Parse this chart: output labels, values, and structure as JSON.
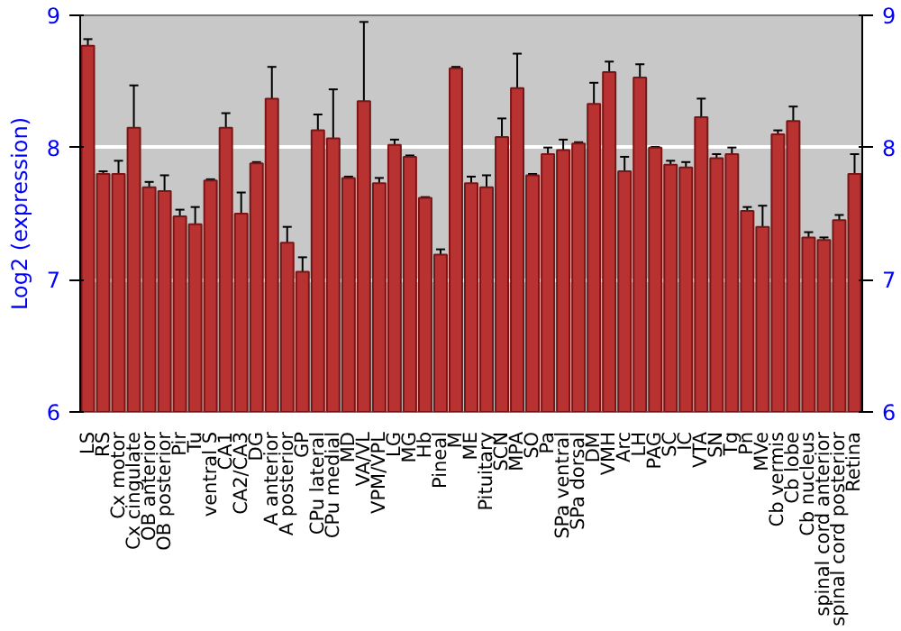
{
  "chart_data": {
    "type": "bar",
    "ylabel": "Log2 (expression)",
    "categories": [
      "LS",
      "RS",
      "Cx motor",
      "Cx cingulate",
      "OB anterior",
      "OB posterior",
      "Pir",
      "Tu",
      "ventral S",
      "CA1",
      "CA2/CA3",
      "DG",
      "A anterior",
      "A posterior",
      "GP",
      "CPu lateral",
      "CPu medial",
      "MD",
      "VA/VL",
      "VPM/VPL",
      "LG",
      "MG",
      "Hb",
      "Pineal",
      "M",
      "ME",
      "Pituitary",
      "SCN",
      "MPA",
      "SO",
      "Pa",
      "SPa ventral",
      "SPa dorsal",
      "DM",
      "VMH",
      "Arc",
      "LH",
      "PAG",
      "SC",
      "IC",
      "VTA",
      "SN",
      "Tg",
      "Pn",
      "MVe",
      "Cb vermis",
      "Cb lobe",
      "Cb nucleus",
      "spinal cord anterior",
      "spinal cord posterior",
      "Retina"
    ],
    "values": [
      8.77,
      7.8,
      7.8,
      8.15,
      7.7,
      7.67,
      7.48,
      7.42,
      7.75,
      8.15,
      7.5,
      7.88,
      8.37,
      7.28,
      7.06,
      8.13,
      8.07,
      7.77,
      8.35,
      7.73,
      8.02,
      7.93,
      7.62,
      7.19,
      8.6,
      7.73,
      7.7,
      8.08,
      8.45,
      7.79,
      7.95,
      7.98,
      8.03,
      8.33,
      8.57,
      7.82,
      8.53,
      8.0,
      7.87,
      7.85,
      8.23,
      7.92,
      7.95,
      7.52,
      7.4,
      8.1,
      8.2,
      7.32,
      7.3,
      7.45,
      7.8
    ],
    "errors": [
      0.05,
      0.02,
      0.1,
      0.32,
      0.04,
      0.12,
      0.05,
      0.13,
      0.01,
      0.11,
      0.16,
      0.01,
      0.24,
      0.12,
      0.11,
      0.12,
      0.37,
      0.01,
      0.6,
      0.04,
      0.04,
      0.01,
      0.005,
      0.04,
      0.01,
      0.05,
      0.09,
      0.14,
      0.26,
      0.01,
      0.05,
      0.08,
      0.01,
      0.16,
      0.08,
      0.11,
      0.1,
      0.005,
      0.03,
      0.04,
      0.14,
      0.03,
      0.05,
      0.03,
      0.16,
      0.03,
      0.11,
      0.04,
      0.02,
      0.04,
      0.15
    ],
    "color": "#b83232",
    "ylim": [
      6,
      9
    ],
    "yticks": [
      6,
      7,
      8,
      9
    ],
    "y2lim": [
      6,
      9
    ],
    "y2ticks": [
      6,
      7,
      8,
      9
    ],
    "grid": "y"
  }
}
